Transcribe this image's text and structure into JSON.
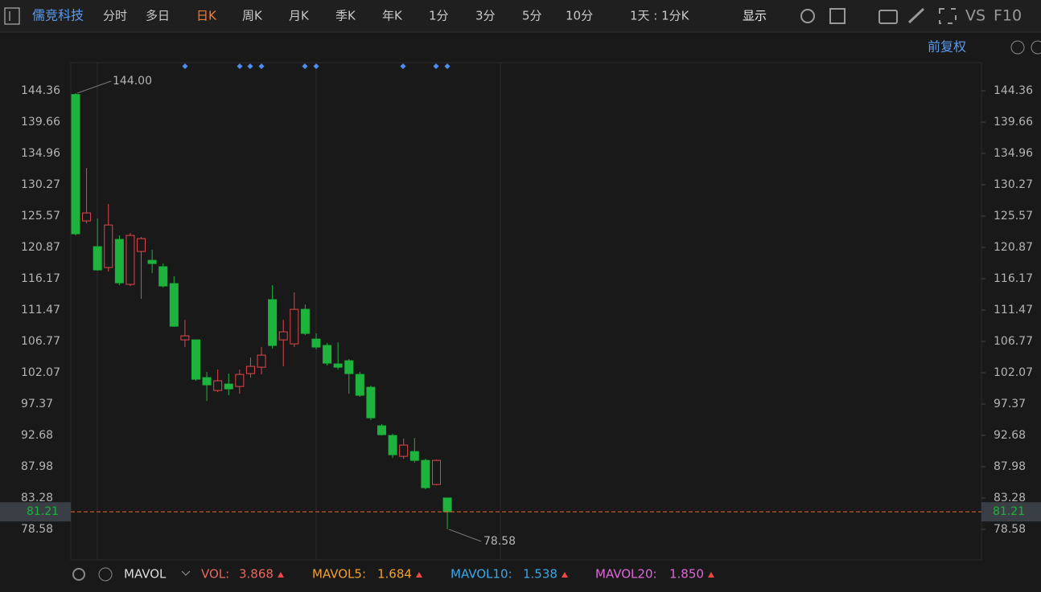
{
  "toolbar": {
    "stock": "儒竞科技",
    "tabs": [
      "分时",
      "多日",
      "日K",
      "周K",
      "月K",
      "季K",
      "年K",
      "1分",
      "3分",
      "5分",
      "10分"
    ],
    "period": "1天 : 1分K",
    "display": "显示",
    "vs": "VS",
    "f10": "F10"
  },
  "chart_data": {
    "type": "candlestick",
    "adjust": "前复权",
    "up_color": "#e0474c",
    "down_color": "#1db33d",
    "open": [
      143.8,
      124.84,
      120.98,
      117.85,
      122.07,
      115.32,
      120.26,
      118.93,
      117.97,
      115.44,
      107.0,
      107.0,
      101.34,
      99.41,
      100.37,
      100.01,
      101.94,
      102.9,
      113.03,
      107.0,
      106.4,
      111.58,
      107.12,
      106.16,
      103.39,
      103.87,
      101.82,
      99.89,
      94.11,
      92.66,
      89.53,
      90.25,
      88.92,
      85.31,
      83.28
    ],
    "close": [
      122.91,
      126.04,
      117.49,
      124.23,
      115.56,
      122.67,
      122.19,
      118.45,
      115.08,
      109.05,
      107.6,
      101.1,
      100.25,
      100.86,
      99.65,
      101.82,
      103.03,
      104.71,
      106.16,
      108.21,
      111.58,
      107.97,
      105.92,
      103.51,
      102.9,
      101.94,
      98.69,
      95.31,
      92.78,
      89.77,
      91.22,
      88.92,
      84.83,
      88.92,
      81.21
    ],
    "high": [
      144.0,
      132.79,
      125.2,
      127.37,
      122.67,
      123.03,
      122.43,
      120.5,
      118.45,
      116.52,
      110.0,
      107.0,
      102.19,
      102.54,
      101.94,
      102.54,
      104.35,
      105.92,
      115.2,
      110.0,
      114.11,
      112.3,
      107.97,
      106.52,
      106.64,
      104.11,
      102.19,
      100.13,
      94.35,
      92.9,
      92.18,
      92.3,
      89.17,
      89.05,
      83.28
    ],
    "low": [
      122.67,
      124.48,
      117.37,
      117.25,
      115.2,
      115.08,
      113.15,
      117.0,
      114.84,
      108.93,
      105.92,
      100.85,
      97.84,
      99.17,
      98.69,
      98.93,
      101.34,
      101.82,
      105.68,
      103.03,
      105.92,
      107.72,
      105.56,
      103.15,
      102.54,
      98.93,
      98.45,
      94.95,
      92.66,
      89.29,
      89.17,
      88.56,
      84.59,
      85.19,
      78.58
    ],
    "ylim": [
      74.0,
      148.58
    ],
    "yticks": [
      144.36,
      139.66,
      134.96,
      130.27,
      125.57,
      120.87,
      116.17,
      111.47,
      106.77,
      102.07,
      97.37,
      92.68,
      87.98,
      83.28,
      78.58
    ],
    "max_label": {
      "value": 144,
      "label": "144.00"
    },
    "min_label": 78.58,
    "last_price": 81.21
  },
  "indicator": {
    "name": "MAVOL",
    "items": [
      {
        "name": "VOL:",
        "value": "3.868",
        "color": "#e8675f"
      },
      {
        "name": "MAVOL5:",
        "value": "1.684",
        "color": "#f0a030"
      },
      {
        "name": "MAVOL10:",
        "value": "1.538",
        "color": "#3aa8e8"
      },
      {
        "name": "MAVOL20:",
        "value": "1.850",
        "color": "#e066d8"
      }
    ]
  }
}
